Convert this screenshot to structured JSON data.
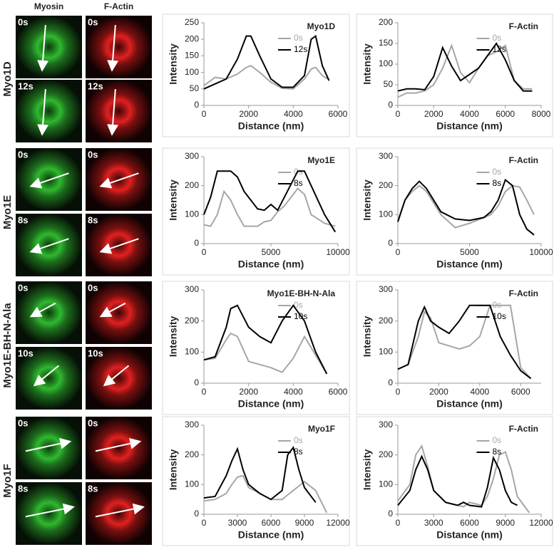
{
  "image_panels": {
    "columns": [
      "Myosin",
      "F-Actin"
    ],
    "rows": [
      {
        "label": "Myo1D",
        "times": [
          "0s",
          "12s"
        ]
      },
      {
        "label": "Myo1E",
        "times": [
          "0s",
          "8s"
        ]
      },
      {
        "label": "Myo1E-BH-N-Ala",
        "times": [
          "0s",
          "10s"
        ]
      },
      {
        "label": "Myo1F",
        "times": [
          "0s",
          "8s"
        ]
      }
    ]
  },
  "chart_data": [
    {
      "type": "line",
      "title": "Myo1D",
      "x_label": "Distance (nm)",
      "y_label": "Intensity",
      "x": [
        0,
        500,
        1000,
        1500,
        1900,
        2100,
        2500,
        3000,
        3500,
        4000,
        4500,
        4800,
        5000,
        5300,
        5600
      ],
      "series": [
        {
          "name": "0s",
          "color": "#a6a6a6",
          "values": [
            60,
            85,
            80,
            95,
            115,
            120,
            100,
            70,
            52,
            50,
            80,
            110,
            115,
            90,
            78
          ]
        },
        {
          "name": "12s",
          "color": "#000000",
          "values": [
            50,
            65,
            80,
            140,
            210,
            210,
            150,
            80,
            55,
            55,
            90,
            200,
            210,
            120,
            75
          ]
        }
      ],
      "xlim": [
        0,
        6000
      ],
      "xticks": [
        0,
        2000,
        4000,
        6000
      ],
      "ylim": [
        0,
        250
      ],
      "yticks": [
        0,
        50,
        100,
        150,
        200,
        250
      ]
    },
    {
      "type": "line",
      "title": "F-Actin",
      "x_label": "Distance (nm)",
      "y_label": "Intensity",
      "x": [
        0,
        500,
        1000,
        1500,
        2000,
        2500,
        3000,
        3500,
        4000,
        4500,
        5000,
        5500,
        6000,
        6500,
        7000,
        7500
      ],
      "series": [
        {
          "name": "0s",
          "color": "#a6a6a6",
          "values": [
            20,
            30,
            30,
            35,
            50,
            90,
            145,
            80,
            55,
            90,
            120,
            130,
            145,
            60,
            40,
            40
          ]
        },
        {
          "name": "12s",
          "color": "#000000",
          "values": [
            35,
            40,
            40,
            38,
            70,
            140,
            95,
            60,
            75,
            90,
            120,
            150,
            110,
            60,
            35,
            35
          ]
        }
      ],
      "xlim": [
        0,
        8000
      ],
      "xticks": [
        0,
        2000,
        4000,
        6000,
        8000
      ],
      "ylim": [
        0,
        200
      ],
      "yticks": [
        0,
        50,
        100,
        150,
        200
      ]
    },
    {
      "type": "line",
      "title": "Myo1E",
      "x_label": "Distance (nm)",
      "y_label": "Intensity",
      "x": [
        0,
        500,
        1000,
        1500,
        2000,
        2500,
        3000,
        4000,
        4500,
        5000,
        5500,
        6000,
        7000,
        7500,
        8000,
        9000,
        9800
      ],
      "series": [
        {
          "name": "0s",
          "color": "#a6a6a6",
          "values": [
            65,
            60,
            100,
            180,
            150,
            100,
            60,
            60,
            75,
            80,
            110,
            130,
            190,
            170,
            100,
            70,
            60
          ]
        },
        {
          "name": "8s",
          "color": "#000000",
          "values": [
            100,
            160,
            250,
            250,
            250,
            230,
            180,
            120,
            115,
            135,
            115,
            160,
            250,
            250,
            200,
            100,
            40
          ]
        }
      ],
      "xlim": [
        0,
        10000
      ],
      "xticks": [
        0,
        5000,
        10000
      ],
      "ylim": [
        0,
        300
      ],
      "yticks": [
        0,
        100,
        200,
        300
      ]
    },
    {
      "type": "line",
      "title": "F-Actin",
      "x_label": "Distance (nm)",
      "y_label": "Intensity",
      "x": [
        0,
        500,
        1000,
        1500,
        2000,
        3000,
        4000,
        5000,
        6000,
        6500,
        7000,
        7500,
        8000,
        8500,
        9000,
        9500
      ],
      "series": [
        {
          "name": "0s",
          "color": "#a6a6a6",
          "values": [
            80,
            150,
            180,
            200,
            180,
            100,
            55,
            70,
            90,
            100,
            130,
            180,
            200,
            195,
            150,
            100
          ]
        },
        {
          "name": "8s",
          "color": "#000000",
          "values": [
            75,
            150,
            190,
            215,
            190,
            110,
            85,
            80,
            90,
            110,
            150,
            220,
            200,
            100,
            50,
            30
          ]
        }
      ],
      "xlim": [
        0,
        10000
      ],
      "xticks": [
        0,
        5000,
        10000
      ],
      "ylim": [
        0,
        300
      ],
      "yticks": [
        0,
        100,
        200,
        300
      ]
    },
    {
      "type": "line",
      "title": "Myo1E-BH-N-Ala",
      "x_label": "Distance (nm)",
      "y_label": "Intensity",
      "x": [
        0,
        500,
        1000,
        1200,
        1500,
        2000,
        2500,
        3000,
        3500,
        4000,
        4500,
        5000,
        5500
      ],
      "series": [
        {
          "name": "0s",
          "color": "#a6a6a6",
          "values": [
            75,
            80,
            140,
            160,
            150,
            70,
            60,
            50,
            35,
            80,
            150,
            90,
            30
          ]
        },
        {
          "name": "10s",
          "color": "#000000",
          "values": [
            75,
            85,
            180,
            240,
            250,
            180,
            150,
            130,
            200,
            250,
            200,
            100,
            30
          ]
        }
      ],
      "xlim": [
        0,
        6000
      ],
      "xticks": [
        0,
        2000,
        4000,
        6000
      ],
      "ylim": [
        0,
        300
      ],
      "yticks": [
        0,
        100,
        200,
        300
      ]
    },
    {
      "type": "line",
      "title": "F-Actin",
      "x_label": "Distance (nm)",
      "y_label": "Intensity",
      "x": [
        0,
        500,
        1000,
        1300,
        1600,
        2000,
        2500,
        3000,
        3500,
        4000,
        4500,
        5000,
        5500,
        6000,
        6500
      ],
      "series": [
        {
          "name": "0s",
          "color": "#a6a6a6",
          "values": [
            45,
            60,
            150,
            230,
            210,
            130,
            120,
            110,
            120,
            150,
            250,
            250,
            250,
            50,
            15
          ]
        },
        {
          "name": "10s",
          "color": "#000000",
          "values": [
            45,
            60,
            200,
            245,
            200,
            180,
            160,
            200,
            250,
            250,
            250,
            150,
            90,
            40,
            15
          ]
        }
      ],
      "xlim": [
        0,
        7000
      ],
      "xticks": [
        0,
        2000,
        4000,
        6000
      ],
      "ylim": [
        0,
        300
      ],
      "yticks": [
        0,
        100,
        200,
        300
      ]
    },
    {
      "type": "line",
      "title": "Myo1F",
      "x_label": "Distance (nm)",
      "y_label": "Intensity",
      "x": [
        0,
        1000,
        2000,
        2500,
        3000,
        3500,
        4000,
        5000,
        6000,
        7000,
        7500,
        8000,
        8500,
        9000,
        10000,
        11000
      ],
      "series": [
        {
          "name": "0s",
          "color": "#a6a6a6",
          "values": [
            45,
            50,
            70,
            100,
            125,
            130,
            90,
            70,
            50,
            50,
            65,
            80,
            95,
            110,
            80,
            5
          ]
        },
        {
          "name": "8s",
          "color": "#000000",
          "values": [
            55,
            60,
            130,
            180,
            220,
            150,
            100,
            70,
            50,
            80,
            200,
            225,
            150,
            90,
            40,
            null
          ]
        }
      ],
      "xlim": [
        0,
        12000
      ],
      "xticks": [
        0,
        3000,
        6000,
        9000,
        12000
      ],
      "ylim": [
        0,
        300
      ],
      "yticks": [
        0,
        100,
        200,
        300
      ]
    },
    {
      "type": "line",
      "title": "F-Actin",
      "x_label": "Distance (nm)",
      "y_label": "Intensity",
      "x": [
        0,
        1000,
        1500,
        2000,
        2500,
        3000,
        4000,
        5000,
        5500,
        6000,
        7000,
        7500,
        8000,
        8500,
        9000,
        9500,
        10000,
        11000
      ],
      "series": [
        {
          "name": "0s",
          "color": "#a6a6a6",
          "values": [
            45,
            100,
            200,
            230,
            160,
            80,
            40,
            30,
            25,
            40,
            30,
            60,
            120,
            200,
            210,
            150,
            60,
            5
          ]
        },
        {
          "name": "8s",
          "color": "#000000",
          "values": [
            30,
            80,
            150,
            195,
            150,
            80,
            40,
            30,
            40,
            30,
            25,
            90,
            190,
            150,
            80,
            40,
            30,
            null
          ]
        }
      ],
      "xlim": [
        0,
        12000
      ],
      "xticks": [
        0,
        3000,
        6000,
        9000,
        12000
      ],
      "ylim": [
        0,
        300
      ],
      "yticks": [
        0,
        100,
        200,
        300
      ]
    }
  ]
}
